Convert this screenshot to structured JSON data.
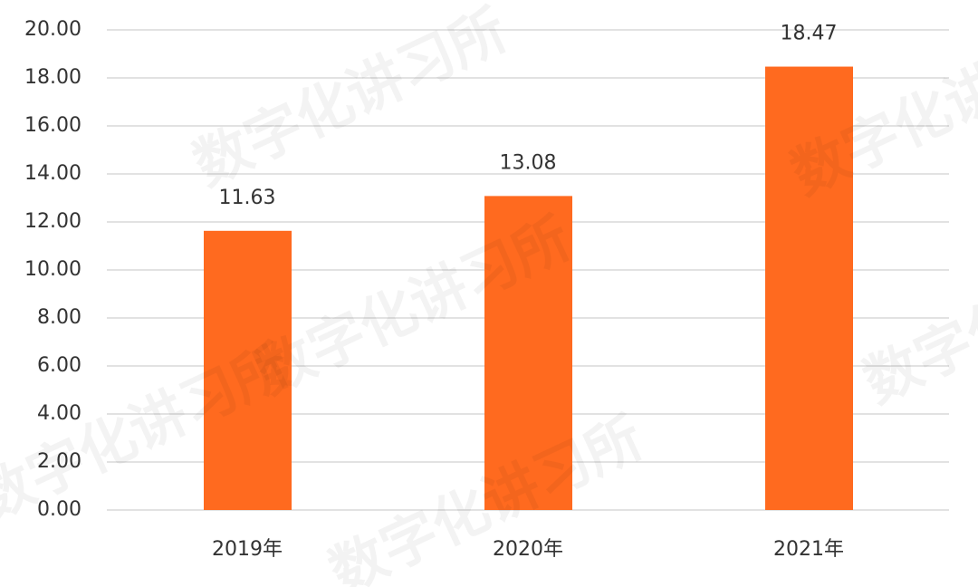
{
  "chart_data": {
    "type": "bar",
    "categories": [
      "2019年",
      "2020年",
      "2021年"
    ],
    "values": [
      11.63,
      13.08,
      18.47
    ],
    "color": "#ff6a1f",
    "ylim": [
      0,
      20
    ],
    "yticks": [
      {
        "value": 0,
        "label": "0.00"
      },
      {
        "value": 2,
        "label": "2.00"
      },
      {
        "value": 4,
        "label": "4.00"
      },
      {
        "value": 6,
        "label": "6.00"
      },
      {
        "value": 8,
        "label": "8.00"
      },
      {
        "value": 10,
        "label": "10.00"
      },
      {
        "value": 12,
        "label": "12.00"
      },
      {
        "value": 14,
        "label": "14.00"
      },
      {
        "value": 16,
        "label": "16.00"
      },
      {
        "value": 18,
        "label": "18.00"
      },
      {
        "value": 20,
        "label": "20.00"
      }
    ],
    "grid": true,
    "watermark": "数字化讲习所"
  }
}
